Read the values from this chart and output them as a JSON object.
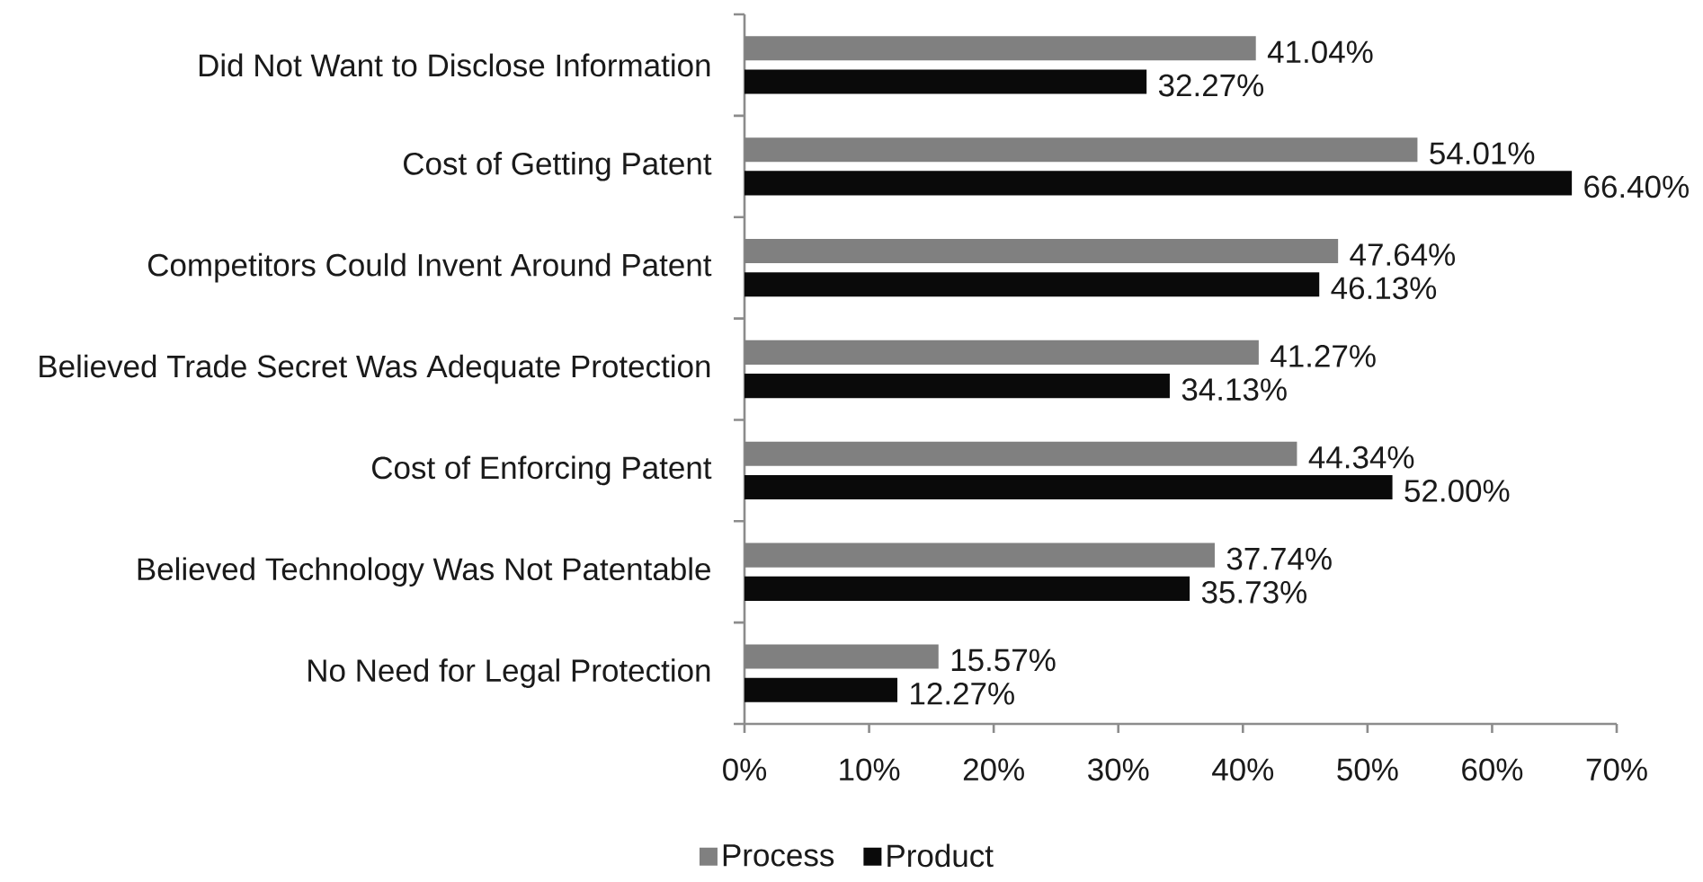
{
  "chart_data": {
    "type": "bar",
    "orientation": "horizontal",
    "categories": [
      "Did Not Want to Disclose Information",
      "Cost of Getting Patent",
      "Competitors Could Invent Around Patent",
      "Believed Trade Secret Was Adequate Protection",
      "Cost of Enforcing Patent",
      "Believed Technology Was Not Patentable",
      "No Need for Legal Protection"
    ],
    "series": [
      {
        "name": "Process",
        "color": "#808080",
        "values": [
          41.04,
          54.01,
          47.64,
          41.27,
          44.34,
          37.74,
          15.57
        ],
        "value_labels": [
          "41.04%",
          "54.01%",
          "47.64%",
          "41.27%",
          "44.34%",
          "37.74%",
          "15.57%"
        ]
      },
      {
        "name": "Product",
        "color": "#0a0a0a",
        "values": [
          32.27,
          66.4,
          46.13,
          34.13,
          52.0,
          35.73,
          12.27
        ],
        "value_labels": [
          "32.27%",
          "66.40%",
          "46.13%",
          "34.13%",
          "52.00%",
          "35.73%",
          "12.27%"
        ]
      }
    ],
    "xlim": [
      0,
      70
    ],
    "xticks": [
      {
        "value": 0,
        "label": "0%"
      },
      {
        "value": 10,
        "label": "10%"
      },
      {
        "value": 20,
        "label": "20%"
      },
      {
        "value": 30,
        "label": "30%"
      },
      {
        "value": 40,
        "label": "40%"
      },
      {
        "value": 50,
        "label": "50%"
      },
      {
        "value": 60,
        "label": "60%"
      },
      {
        "value": 70,
        "label": "70%"
      }
    ],
    "legend": "bottom"
  }
}
